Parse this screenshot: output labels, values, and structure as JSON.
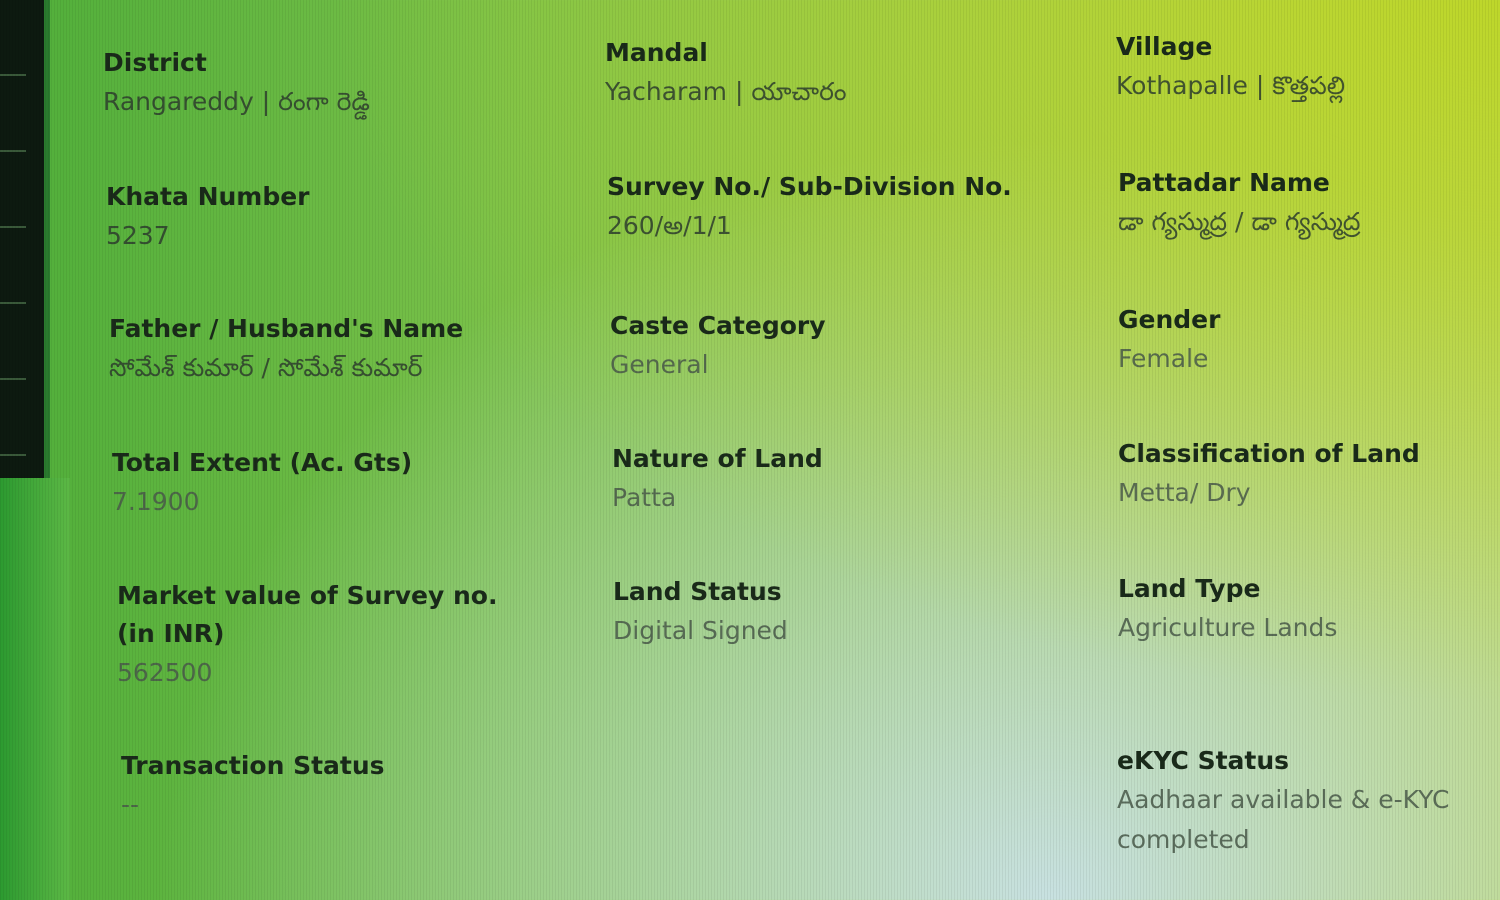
{
  "fields": {
    "district": {
      "label": "District",
      "value": "Rangareddy | రంగా రెడ్డి"
    },
    "mandal": {
      "label": "Mandal",
      "value": "Yacharam | యాచారం"
    },
    "village": {
      "label": "Village",
      "value": "Kothapalle | కొత్తపల్లి"
    },
    "khata": {
      "label": "Khata Number",
      "value": "5237"
    },
    "survey": {
      "label": "Survey No./ Sub-Division No.",
      "value": "260/అ/1/1"
    },
    "pattadar": {
      "label": "Pattadar Name",
      "value": "డా గ్యస్ముద్ర / డా గ్యస్ముద్ర"
    },
    "father": {
      "label": "Father / Husband's Name",
      "value": "సోమేశ్ కుమార్ / సోమేశ్ కుమార్"
    },
    "caste": {
      "label": "Caste Category",
      "value": "General"
    },
    "gender": {
      "label": "Gender",
      "value": "Female"
    },
    "extent": {
      "label": "Total Extent (Ac. Gts)",
      "value": "7.1900"
    },
    "nature": {
      "label": "Nature of Land",
      "value": "Patta"
    },
    "classification": {
      "label": "Classification of Land",
      "value": "Metta/ Dry"
    },
    "market": {
      "label": "Market value of Survey no.(in INR)",
      "value": "562500"
    },
    "status": {
      "label": "Land Status",
      "value": "Digital Signed"
    },
    "type": {
      "label": "Land Type",
      "value": "Agriculture Lands"
    },
    "transaction": {
      "label": "Transaction Status",
      "value": "--"
    },
    "ekyc": {
      "label": "eKYC Status",
      "value": "Aadhaar available & e-KYC completed"
    }
  }
}
